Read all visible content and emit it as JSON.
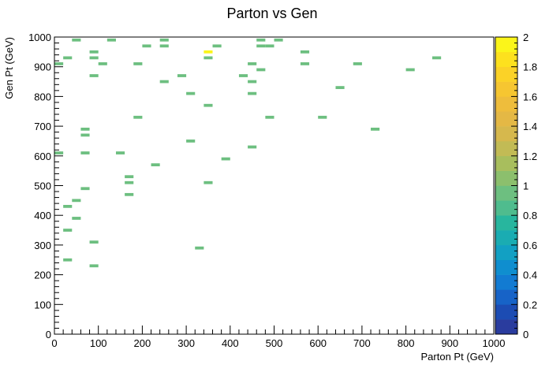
{
  "chart_data": {
    "type": "heatmap",
    "title": "Parton vs Gen",
    "xlabel": "Parton Pt (GeV)",
    "ylabel": "Gen Pt (GeV)",
    "xlim": [
      0,
      1000
    ],
    "ylim": [
      0,
      1000
    ],
    "bin_size": [
      20,
      10
    ],
    "x_ticks": [
      "0",
      "100",
      "200",
      "300",
      "400",
      "500",
      "600",
      "700",
      "800",
      "900",
      "1000"
    ],
    "y_ticks": [
      "0",
      "100",
      "200",
      "300",
      "400",
      "500",
      "600",
      "700",
      "800",
      "900",
      "1000"
    ],
    "color_scale": {
      "min": 0,
      "max": 2,
      "ticks": [
        "0",
        "0.2",
        "0.4",
        "0.6",
        "0.8",
        "1",
        "1.2",
        "1.4",
        "1.6",
        "1.8",
        "2"
      ],
      "colors": [
        "#2a3c9e",
        "#1c4cb3",
        "#1763c7",
        "#127bd2",
        "#0f8ecf",
        "#12a0c3",
        "#1aacb2",
        "#28b69e",
        "#4fbc8e",
        "#6dbf80",
        "#8cbf6d",
        "#a8be5d",
        "#c2bb55",
        "#d6b84d",
        "#e4b845",
        "#eebd3c",
        "#f6c631",
        "#fbd227",
        "#fde11e",
        "#fbf51a"
      ]
    },
    "cells": [
      {
        "x": 50,
        "y": 990,
        "value": 1
      },
      {
        "x": 130,
        "y": 990,
        "value": 1
      },
      {
        "x": 250,
        "y": 990,
        "value": 1
      },
      {
        "x": 470,
        "y": 990,
        "value": 1
      },
      {
        "x": 510,
        "y": 990,
        "value": 1
      },
      {
        "x": 210,
        "y": 970,
        "value": 1
      },
      {
        "x": 250,
        "y": 970,
        "value": 1
      },
      {
        "x": 370,
        "y": 970,
        "value": 1
      },
      {
        "x": 470,
        "y": 970,
        "value": 1
      },
      {
        "x": 490,
        "y": 970,
        "value": 1
      },
      {
        "x": 350,
        "y": 950,
        "value": 2
      },
      {
        "x": 90,
        "y": 950,
        "value": 1
      },
      {
        "x": 570,
        "y": 950,
        "value": 1
      },
      {
        "x": 30,
        "y": 930,
        "value": 1
      },
      {
        "x": 90,
        "y": 930,
        "value": 1
      },
      {
        "x": 350,
        "y": 930,
        "value": 1
      },
      {
        "x": 870,
        "y": 930,
        "value": 1
      },
      {
        "x": 10,
        "y": 910,
        "value": 1
      },
      {
        "x": 110,
        "y": 910,
        "value": 1
      },
      {
        "x": 190,
        "y": 910,
        "value": 1
      },
      {
        "x": 450,
        "y": 910,
        "value": 1
      },
      {
        "x": 570,
        "y": 910,
        "value": 1
      },
      {
        "x": 690,
        "y": 910,
        "value": 1
      },
      {
        "x": 470,
        "y": 890,
        "value": 1
      },
      {
        "x": 810,
        "y": 890,
        "value": 1
      },
      {
        "x": 90,
        "y": 870,
        "value": 1
      },
      {
        "x": 290,
        "y": 870,
        "value": 1
      },
      {
        "x": 430,
        "y": 870,
        "value": 1
      },
      {
        "x": 250,
        "y": 850,
        "value": 1
      },
      {
        "x": 450,
        "y": 850,
        "value": 1
      },
      {
        "x": 650,
        "y": 830,
        "value": 1
      },
      {
        "x": 310,
        "y": 810,
        "value": 1
      },
      {
        "x": 450,
        "y": 810,
        "value": 1
      },
      {
        "x": 350,
        "y": 770,
        "value": 1
      },
      {
        "x": 190,
        "y": 730,
        "value": 1
      },
      {
        "x": 490,
        "y": 730,
        "value": 1
      },
      {
        "x": 610,
        "y": 730,
        "value": 1
      },
      {
        "x": 70,
        "y": 690,
        "value": 1
      },
      {
        "x": 730,
        "y": 690,
        "value": 1
      },
      {
        "x": 70,
        "y": 670,
        "value": 1
      },
      {
        "x": 310,
        "y": 650,
        "value": 1
      },
      {
        "x": 450,
        "y": 630,
        "value": 1
      },
      {
        "x": 10,
        "y": 610,
        "value": 1
      },
      {
        "x": 70,
        "y": 610,
        "value": 1
      },
      {
        "x": 150,
        "y": 610,
        "value": 1
      },
      {
        "x": 390,
        "y": 590,
        "value": 1
      },
      {
        "x": 230,
        "y": 570,
        "value": 1
      },
      {
        "x": 170,
        "y": 530,
        "value": 1
      },
      {
        "x": 170,
        "y": 510,
        "value": 1
      },
      {
        "x": 350,
        "y": 510,
        "value": 1
      },
      {
        "x": 70,
        "y": 490,
        "value": 1
      },
      {
        "x": 170,
        "y": 470,
        "value": 1
      },
      {
        "x": 50,
        "y": 450,
        "value": 1
      },
      {
        "x": 30,
        "y": 430,
        "value": 1
      },
      {
        "x": 50,
        "y": 390,
        "value": 1
      },
      {
        "x": 30,
        "y": 350,
        "value": 1
      },
      {
        "x": 90,
        "y": 310,
        "value": 1
      },
      {
        "x": 330,
        "y": 290,
        "value": 1
      },
      {
        "x": 30,
        "y": 250,
        "value": 1
      },
      {
        "x": 90,
        "y": 230,
        "value": 1
      }
    ]
  }
}
